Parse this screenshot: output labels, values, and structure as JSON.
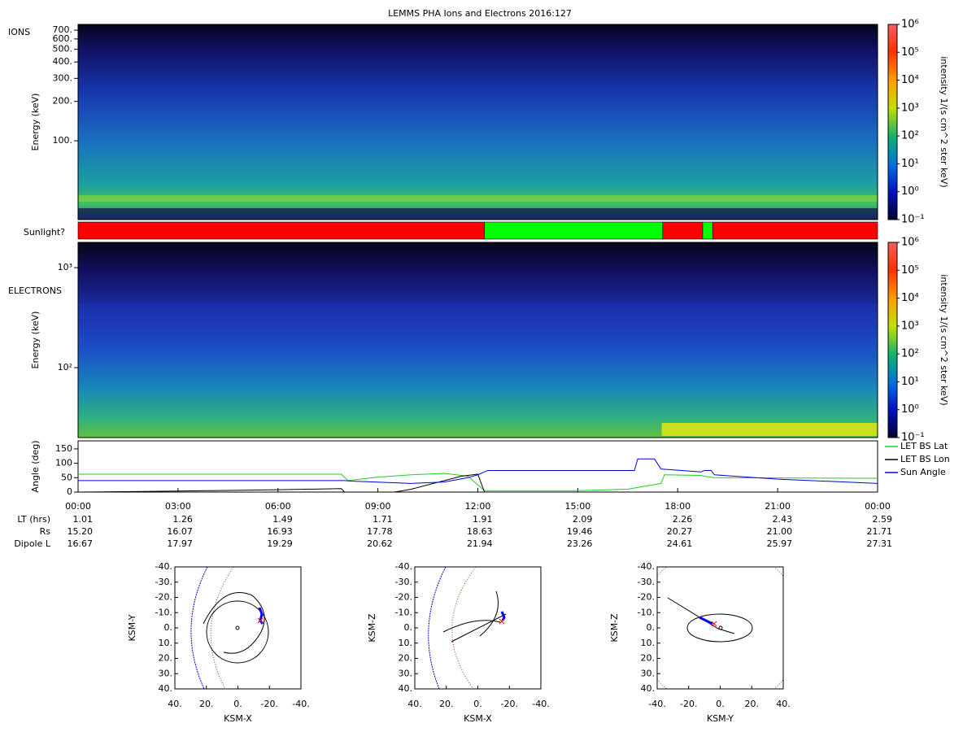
{
  "title": "LEMMS PHA Ions and Electrons  2016:127",
  "chart_data": [
    {
      "type": "spectrogram",
      "label": "IONS",
      "ylabel": "Energy (keV)",
      "log_scale": true,
      "ylim": [
        25,
        775
      ],
      "yticks": [
        {
          "value": 100,
          "label": "100."
        },
        {
          "value": 200,
          "label": "200."
        },
        {
          "value": 300,
          "label": "300."
        },
        {
          "value": 400,
          "label": "400."
        },
        {
          "value": 500,
          "label": "500."
        },
        {
          "value": 600,
          "label": "600."
        },
        {
          "value": 700,
          "label": "700."
        }
      ],
      "colorbar": {
        "label": "intensity 1/(s cm^2 ster keV)",
        "lim": [
          0.1,
          1000000
        ],
        "ticks": [
          {
            "value": 0.1,
            "label": "10⁻¹"
          },
          {
            "value": 1,
            "label": "10⁰"
          },
          {
            "value": 10,
            "label": "10¹"
          },
          {
            "value": 100,
            "label": "10²"
          },
          {
            "value": 1000,
            "label": "10³"
          },
          {
            "value": 10000,
            "label": "10⁴"
          },
          {
            "value": 100000,
            "label": "10⁵"
          },
          {
            "value": 1000000,
            "label": "10⁶"
          }
        ]
      }
    },
    {
      "type": "timeline",
      "label": "Sunlight?",
      "xlim": [
        0,
        24
      ],
      "segments": [
        {
          "start": 0,
          "end": 12.2,
          "color": "#ff0000"
        },
        {
          "start": 12.2,
          "end": 17.55,
          "color": "#00ff00"
        },
        {
          "start": 17.55,
          "end": 18.75,
          "color": "#ff0000"
        },
        {
          "start": 18.75,
          "end": 19.05,
          "color": "#00ff00"
        },
        {
          "start": 19.05,
          "end": 24,
          "color": "#ff0000"
        }
      ]
    },
    {
      "type": "spectrogram",
      "label": "ELECTRONS",
      "ylabel": "Energy (keV)",
      "log_scale": true,
      "ylim": [
        20,
        1790
      ],
      "yticks": [
        {
          "value": 100,
          "label": "10²"
        },
        {
          "value": 1000,
          "label": "10³"
        }
      ],
      "colorbar": {
        "label": "intensity 1/(s cm^2 ster keV)",
        "lim": [
          0.1,
          1000000
        ],
        "ticks": [
          {
            "value": 0.1,
            "label": "10⁻¹"
          },
          {
            "value": 1,
            "label": "10⁰"
          },
          {
            "value": 10,
            "label": "10¹"
          },
          {
            "value": 100,
            "label": "10²"
          },
          {
            "value": 1000,
            "label": "10³"
          },
          {
            "value": 10000,
            "label": "10⁴"
          },
          {
            "value": 100000,
            "label": "10⁵"
          },
          {
            "value": 1000000,
            "label": "10⁶"
          }
        ]
      }
    },
    {
      "type": "line",
      "ylabel": "Angle (deg)",
      "xlim": [
        0,
        24
      ],
      "ylim": [
        0,
        178
      ],
      "yticks": [
        0,
        50,
        100,
        150
      ],
      "xticks": [
        {
          "value": 0,
          "label": "00:00"
        },
        {
          "value": 3,
          "label": "03:00"
        },
        {
          "value": 6,
          "label": "06:00"
        },
        {
          "value": 9,
          "label": "09:00"
        },
        {
          "value": 12,
          "label": "12:00"
        },
        {
          "value": 15,
          "label": "15:00"
        },
        {
          "value": 18,
          "label": "18:00"
        },
        {
          "value": 21,
          "label": "21:00"
        },
        {
          "value": 24,
          "label": "00:00"
        }
      ],
      "series": [
        {
          "name": "LET BS Lat",
          "color": "#22cc22",
          "x": [
            0,
            7.9,
            8.1,
            9,
            10,
            11,
            11.7,
            12.2,
            13,
            15,
            16.5,
            17.5,
            17.6,
            18.7,
            18.8,
            19.1,
            21,
            24
          ],
          "values": [
            62,
            62,
            40,
            52,
            60,
            65,
            55,
            5,
            5,
            5,
            10,
            30,
            60,
            58,
            55,
            50,
            49,
            48
          ]
        },
        {
          "name": "LET BS Lon",
          "color": "#000000",
          "x": [
            0,
            2,
            4,
            6,
            7.9,
            8.0,
            9.5,
            10,
            10.5,
            11,
            11.5,
            12,
            12.2,
            24
          ],
          "values": [
            0,
            2,
            5,
            8,
            12,
            0,
            0,
            10,
            25,
            40,
            55,
            62,
            0,
            0
          ]
        },
        {
          "name": "Sun Angle",
          "color": "#0000dd",
          "x": [
            0,
            8,
            8.2,
            10,
            11,
            11.7,
            12,
            12.3,
            16.7,
            16.8,
            17.3,
            17.5,
            18.7,
            18.8,
            19.0,
            19.1,
            21,
            24
          ],
          "values": [
            40,
            40,
            38,
            30,
            35,
            50,
            60,
            75,
            75,
            115,
            115,
            80,
            70,
            75,
            75,
            60,
            45,
            30
          ]
        }
      ],
      "rows": [
        {
          "label": "LT (hrs)",
          "values": [
            "1.01",
            "1.26",
            "1.49",
            "1.71",
            "1.91",
            "2.09",
            "2.26",
            "2.43",
            "2.59"
          ]
        },
        {
          "label": "Rs",
          "values": [
            "15.20",
            "16.07",
            "16.93",
            "17.78",
            "18.63",
            "19.46",
            "20.27",
            "21.00",
            "21.71"
          ]
        },
        {
          "label": "Dipole L",
          "values": [
            "16.67",
            "17.97",
            "19.29",
            "20.62",
            "21.94",
            "23.26",
            "24.61",
            "25.97",
            "27.31"
          ]
        }
      ]
    },
    {
      "type": "orbit",
      "xlabel": "KSM-X",
      "ylabel": "KSM-Y",
      "xlim": [
        40,
        -40
      ],
      "ylim": [
        40,
        -40
      ],
      "xticks": [
        {
          "value": 40,
          "label": "40."
        },
        {
          "value": 20,
          "label": "20."
        },
        {
          "value": 0,
          "label": "0."
        },
        {
          "value": -20,
          "label": "-20."
        },
        {
          "value": -40,
          "label": "-40."
        }
      ],
      "yticks": [
        {
          "value": -40,
          "label": "-40."
        },
        {
          "value": -30,
          "label": "-30."
        },
        {
          "value": -20,
          "label": "-20."
        },
        {
          "value": -10,
          "label": "-10."
        },
        {
          "value": 0,
          "label": "0."
        },
        {
          "value": 10,
          "label": "10."
        },
        {
          "value": 20,
          "label": "20."
        },
        {
          "value": 30,
          "label": "30."
        },
        {
          "value": 40,
          "label": "40."
        }
      ]
    },
    {
      "type": "orbit",
      "xlabel": "KSM-X",
      "ylabel": "KSM-Z",
      "xlim": [
        40,
        -40
      ],
      "ylim": [
        40,
        -40
      ],
      "xticks": [
        {
          "value": 40,
          "label": "40."
        },
        {
          "value": 20,
          "label": "20."
        },
        {
          "value": 0,
          "label": "0."
        },
        {
          "value": -20,
          "label": "-20."
        },
        {
          "value": -40,
          "label": "-40."
        }
      ],
      "yticks": [
        {
          "value": -40,
          "label": "-40."
        },
        {
          "value": -30,
          "label": "-30."
        },
        {
          "value": -20,
          "label": "-20."
        },
        {
          "value": -10,
          "label": "-10."
        },
        {
          "value": 0,
          "label": "0."
        },
        {
          "value": 10,
          "label": "10."
        },
        {
          "value": 20,
          "label": "20."
        },
        {
          "value": 30,
          "label": "30."
        },
        {
          "value": 40,
          "label": "40."
        }
      ]
    },
    {
      "type": "orbit",
      "xlabel": "KSM-Y",
      "ylabel": "KSM-Z",
      "xlim": [
        -40,
        40
      ],
      "ylim": [
        40,
        -40
      ],
      "xticks": [
        {
          "value": -40,
          "label": "-40."
        },
        {
          "value": -20,
          "label": "-20."
        },
        {
          "value": 0,
          "label": "0."
        },
        {
          "value": 20,
          "label": "20."
        },
        {
          "value": 40,
          "label": "40."
        }
      ],
      "yticks": [
        {
          "value": -40,
          "label": "-40."
        },
        {
          "value": -30,
          "label": "-30."
        },
        {
          "value": -20,
          "label": "-20."
        },
        {
          "value": -10,
          "label": "-10."
        },
        {
          "value": 0,
          "label": "0."
        },
        {
          "value": 10,
          "label": "10."
        },
        {
          "value": 20,
          "label": "20."
        },
        {
          "value": 30,
          "label": "30."
        },
        {
          "value": 40,
          "label": "40."
        }
      ]
    }
  ]
}
